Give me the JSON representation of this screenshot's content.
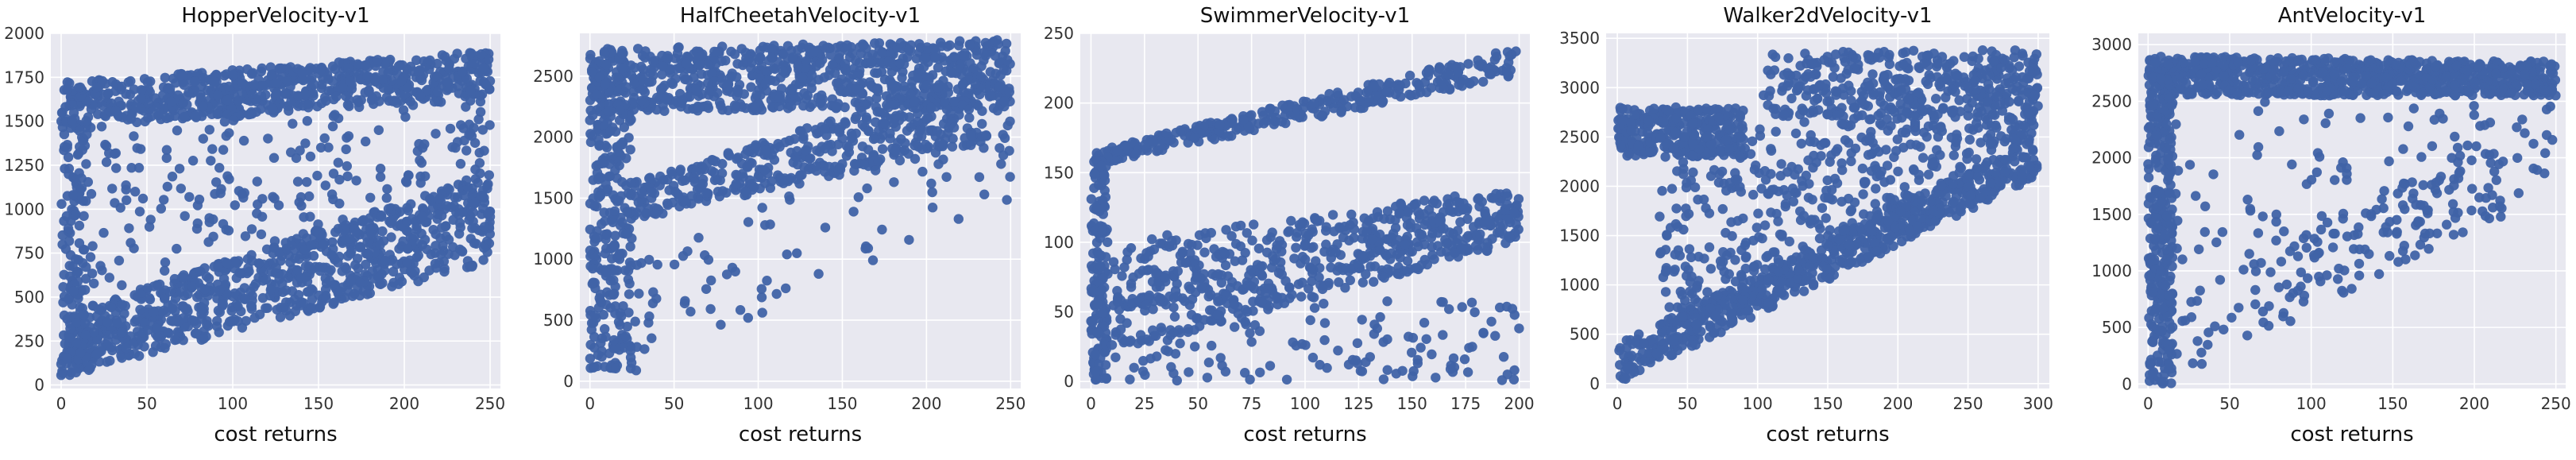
{
  "chart_data": [
    {
      "type": "scatter",
      "title": "HopperVelocity-v1",
      "xlabel": "cost returns",
      "ylabel": "",
      "xlim": [
        -6,
        256
      ],
      "ylim": [
        -20,
        2000
      ],
      "xticks": [
        0,
        50,
        100,
        150,
        200,
        250
      ],
      "yticks": [
        0,
        250,
        500,
        750,
        1000,
        1250,
        1500,
        1750,
        2000
      ],
      "grid": true,
      "marker_color": "#4063a6",
      "background": "#e8e8f0",
      "seed": 11,
      "clusters": [
        {
          "n": 700,
          "x": [
            0,
            250
          ],
          "y0": [
            1450,
            1720
          ],
          "y1": [
            1650,
            1900
          ],
          "spread": 0
        },
        {
          "n": 900,
          "x": [
            0,
            250
          ],
          "y0": [
            40,
            400
          ],
          "y1": [
            700,
            1200
          ],
          "spread": 0
        },
        {
          "n": 220,
          "x": [
            0,
            250
          ],
          "y0": [
            400,
            1450
          ],
          "y1": [
            1200,
            1650
          ],
          "spread": 0
        },
        {
          "n": 110,
          "x": [
            0,
            15
          ],
          "y0": [
            100,
            1700
          ],
          "y1": [
            100,
            1700
          ],
          "spread": 0
        }
      ]
    },
    {
      "type": "scatter",
      "title": "HalfCheetahVelocity-v1",
      "xlabel": "cost returns",
      "ylabel": "",
      "xlim": [
        -6,
        256
      ],
      "ylim": [
        -60,
        2850
      ],
      "xticks": [
        0,
        50,
        100,
        150,
        200,
        250
      ],
      "yticks": [
        0,
        500,
        1000,
        1500,
        2000,
        2500
      ],
      "grid": true,
      "marker_color": "#4063a6",
      "background": "#e8e8f0",
      "seed": 23,
      "clusters": [
        {
          "n": 800,
          "x": [
            0,
            250
          ],
          "y0": [
            2200,
            2720
          ],
          "y1": [
            2250,
            2800
          ],
          "spread": 0
        },
        {
          "n": 450,
          "x": [
            20,
            250
          ],
          "y0": [
            1300,
            1600
          ],
          "y1": [
            2000,
            2600
          ],
          "spread": 0
        },
        {
          "n": 280,
          "x": [
            0,
            25
          ],
          "y0": [
            100,
            2700
          ],
          "y1": [
            100,
            2700
          ],
          "spread": 0
        },
        {
          "n": 90,
          "x": [
            20,
            250
          ],
          "y0": [
            0,
            900
          ],
          "y1": [
            1500,
            2400
          ],
          "spread": 0
        }
      ]
    },
    {
      "type": "scatter",
      "title": "SwimmerVelocity-v1",
      "xlabel": "cost returns",
      "ylabel": "",
      "xlim": [
        -5,
        205
      ],
      "ylim": [
        -5,
        250
      ],
      "xticks": [
        0,
        25,
        50,
        75,
        100,
        125,
        150,
        175,
        200
      ],
      "yticks": [
        0,
        50,
        100,
        150,
        200,
        250
      ],
      "grid": true,
      "marker_color": "#4063a6",
      "background": "#e8e8f0",
      "seed": 37,
      "clusters": [
        {
          "n": 320,
          "x": [
            0,
            200
          ],
          "y0": [
            155,
            165
          ],
          "y1": [
            220,
            240
          ],
          "spread": 0
        },
        {
          "n": 600,
          "x": [
            10,
            200
          ],
          "y0": [
            20,
            100
          ],
          "y1": [
            100,
            140
          ],
          "spread": 0
        },
        {
          "n": 150,
          "x": [
            0,
            8
          ],
          "y0": [
            0,
            160
          ],
          "y1": [
            0,
            160
          ],
          "spread": 0
        },
        {
          "n": 140,
          "x": [
            5,
            200
          ],
          "y0": [
            0,
            60
          ],
          "y1": [
            0,
            60
          ],
          "spread": 0
        }
      ]
    },
    {
      "type": "scatter",
      "title": "Walker2dVelocity-v1",
      "xlabel": "cost returns",
      "ylabel": "",
      "xlim": [
        -8,
        308
      ],
      "ylim": [
        -50,
        3550
      ],
      "xticks": [
        0,
        50,
        100,
        150,
        200,
        250,
        300
      ],
      "yticks": [
        0,
        500,
        1000,
        1500,
        2000,
        2500,
        3000,
        3500
      ],
      "grid": true,
      "marker_color": "#4063a6",
      "background": "#e8e8f0",
      "seed": 53,
      "clusters": [
        {
          "n": 350,
          "x": [
            0,
            90
          ],
          "y0": [
            2300,
            2800
          ],
          "y1": [
            2300,
            2800
          ],
          "spread": 0
        },
        {
          "n": 650,
          "x": [
            0,
            300
          ],
          "y0": [
            0,
            400
          ],
          "y1": [
            2100,
            2500
          ],
          "spread": 0
        },
        {
          "n": 550,
          "x": [
            30,
            300
          ],
          "y0": [
            300,
            2300
          ],
          "y1": [
            2500,
            3400
          ],
          "spread": 0
        },
        {
          "n": 300,
          "x": [
            100,
            300
          ],
          "y0": [
            2700,
            3350
          ],
          "y1": [
            2700,
            3400
          ],
          "spread": 0
        }
      ]
    },
    {
      "type": "scatter",
      "title": "AntVelocity-v1",
      "xlabel": "cost returns",
      "ylabel": "",
      "xlim": [
        -6,
        256
      ],
      "ylim": [
        -40,
        3100
      ],
      "xticks": [
        0,
        50,
        100,
        150,
        200,
        250
      ],
      "yticks": [
        0,
        500,
        1000,
        1500,
        2000,
        2500,
        3000
      ],
      "grid": true,
      "marker_color": "#4063a6",
      "background": "#e8e8f0",
      "seed": 71,
      "clusters": [
        {
          "n": 800,
          "x": [
            10,
            250
          ],
          "y0": [
            2550,
            2900
          ],
          "y1": [
            2550,
            2850
          ],
          "spread": 0
        },
        {
          "n": 320,
          "x": [
            0,
            15
          ],
          "y0": [
            0,
            2900
          ],
          "y1": [
            0,
            2900
          ],
          "spread": 0
        },
        {
          "n": 170,
          "x": [
            10,
            250
          ],
          "y0": [
            0,
            700
          ],
          "y1": [
            1700,
            2500
          ],
          "spread": 0
        },
        {
          "n": 90,
          "x": [
            10,
            220
          ],
          "y0": [
            800,
            2500
          ],
          "y1": [
            1500,
            2500
          ],
          "spread": 0
        }
      ]
    }
  ]
}
